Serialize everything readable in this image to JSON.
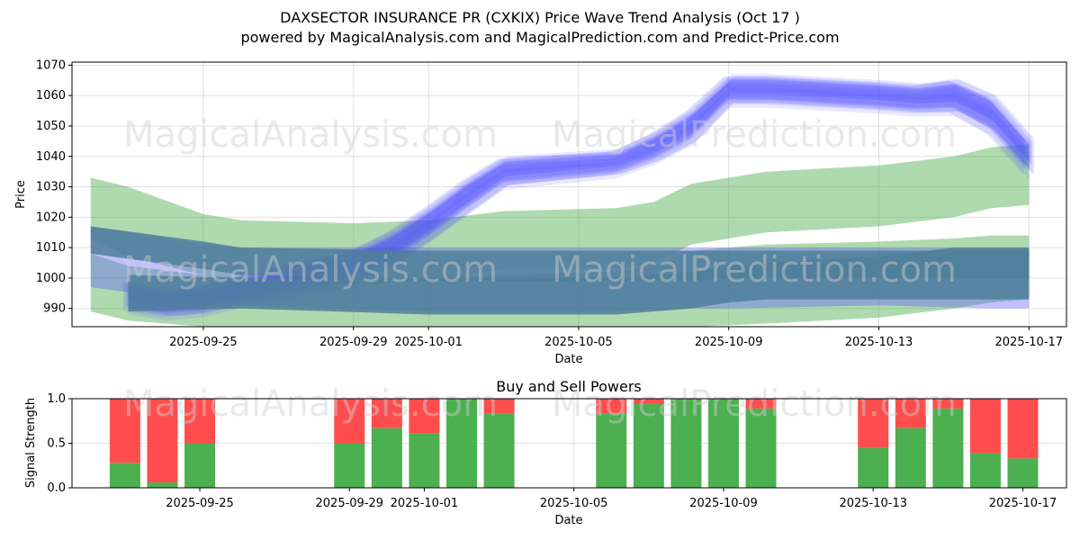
{
  "title_line1": "DAXSECTOR INSURANCE PR (CXKIX) Price Wave Trend Analysis (Oct 17 )",
  "title_line2": "powered by MagicalAnalysis.com and MagicalPrediction.com and Predict-Price.com",
  "watermarks": [
    "MagicalAnalysis.com",
    "MagicalPrediction.com"
  ],
  "colors": {
    "blue_band": "#4d4dff",
    "green_band": "#2e9e2e",
    "steel_band": "#4f7f9a",
    "buy": "#4caf50",
    "sell": "#ff4d4d",
    "grid": "#e0e0e0"
  },
  "chart_data": [
    {
      "type": "area",
      "title": "",
      "xlabel": "Date",
      "ylabel": "Price",
      "xlim": [
        "2025-09-21T12:00",
        "2025-10-18T00:00"
      ],
      "ylim": [
        984,
        1071
      ],
      "yticks": [
        990,
        1000,
        1010,
        1020,
        1030,
        1040,
        1050,
        1060,
        1070
      ],
      "xticks": [
        "2025-09-25",
        "2025-09-29",
        "2025-10-01",
        "2025-10-05",
        "2025-10-09",
        "2025-10-13",
        "2025-10-17"
      ],
      "grid": true,
      "price_wave": {
        "x": [
          "2025-09-23",
          "2025-09-24",
          "2025-09-25",
          "2025-09-26",
          "2025-09-29",
          "2025-09-30",
          "2025-10-01",
          "2025-10-02",
          "2025-10-03",
          "2025-10-06",
          "2025-10-07",
          "2025-10-08",
          "2025-10-09",
          "2025-10-10",
          "2025-10-13",
          "2025-10-14",
          "2025-10-15",
          "2025-10-16",
          "2025-10-17"
        ],
        "center": [
          994,
          992,
          993,
          996,
          1004,
          1010,
          1018,
          1027,
          1035,
          1038,
          1043,
          1050,
          1062,
          1062,
          1060,
          1059,
          1060,
          1054,
          1040
        ],
        "spread": [
          6,
          6,
          6,
          6,
          7,
          7,
          7,
          7,
          6,
          5,
          6,
          7,
          6,
          6,
          6,
          6,
          7,
          8,
          8
        ]
      },
      "bands": [
        {
          "name": "upper-green",
          "x": [
            "2025-09-22",
            "2025-09-23",
            "2025-09-25",
            "2025-09-26",
            "2025-09-29",
            "2025-10-01",
            "2025-10-03",
            "2025-10-06",
            "2025-10-07",
            "2025-10-08",
            "2025-10-10",
            "2025-10-13",
            "2025-10-15",
            "2025-10-16",
            "2025-10-17"
          ],
          "top": [
            1033,
            1030,
            1021,
            1019,
            1018,
            1019,
            1022,
            1023,
            1025,
            1031,
            1035,
            1037,
            1040,
            1043,
            1044
          ],
          "bottom": [
            1013,
            1007,
            1001,
            999,
            998,
            999,
            1003,
            1003,
            1005,
            1011,
            1015,
            1017,
            1020,
            1023,
            1024
          ]
        },
        {
          "name": "lower-green",
          "x": [
            "2025-09-22",
            "2025-09-23",
            "2025-09-25",
            "2025-09-26",
            "2025-09-29",
            "2025-10-01",
            "2025-10-03",
            "2025-10-06",
            "2025-10-07",
            "2025-10-08",
            "2025-10-10",
            "2025-10-13",
            "2025-10-15",
            "2025-10-16",
            "2025-10-17"
          ],
          "top": [
            1008,
            1004,
            1001,
            1000,
            999,
            1000,
            1001,
            1002,
            1004,
            1009,
            1011,
            1012,
            1013,
            1014,
            1014
          ],
          "bottom": [
            989,
            986,
            984,
            984,
            984,
            984,
            984,
            984,
            984,
            984,
            985,
            987,
            990,
            992,
            993
          ]
        },
        {
          "name": "upper-blue",
          "x": [
            "2025-09-22",
            "2025-09-25",
            "2025-09-26",
            "2025-10-01",
            "2025-10-06",
            "2025-10-08",
            "2025-10-09",
            "2025-10-13",
            "2025-10-16",
            "2025-10-17"
          ],
          "top": [
            1017,
            1011,
            1010,
            1010,
            1010,
            1010,
            1010,
            1010,
            1010,
            1010
          ],
          "bottom": [
            997,
            992,
            991,
            989,
            989,
            990,
            990,
            991,
            990,
            990
          ]
        },
        {
          "name": "steel-1",
          "x": [
            "2025-09-22",
            "2025-09-25",
            "2025-09-26",
            "2025-10-01",
            "2025-10-06",
            "2025-10-08",
            "2025-10-09",
            "2025-10-13",
            "2025-10-16",
            "2025-10-17"
          ],
          "top": [
            1017,
            1012,
            1010,
            1009,
            1009,
            1009,
            1009,
            1009,
            1009,
            1009
          ],
          "bottom": [
            1008,
            1003,
            1001,
            999,
            999,
            999,
            1000,
            1000,
            1000,
            1000
          ]
        },
        {
          "name": "steel-2",
          "x": [
            "2025-09-23",
            "2025-09-26",
            "2025-10-01",
            "2025-10-06",
            "2025-10-08",
            "2025-10-09",
            "2025-10-10",
            "2025-10-13",
            "2025-10-15",
            "2025-10-17"
          ],
          "top": [
            1001,
            1000,
            1000,
            1000,
            1002,
            1004,
            1005,
            1007,
            1010,
            1010
          ],
          "bottom": [
            989,
            990,
            988,
            988,
            990,
            992,
            993,
            993,
            993,
            993
          ]
        }
      ]
    },
    {
      "type": "bar",
      "title": "Buy and Sell Powers",
      "xlabel": "Date",
      "ylabel": "Signal Strength",
      "ylim": [
        0,
        1
      ],
      "yticks": [
        "0.0",
        "0.5",
        "1.0"
      ],
      "xticks": [
        "2025-09-25",
        "2025-09-29",
        "2025-10-01",
        "2025-10-05",
        "2025-10-09",
        "2025-10-13",
        "2025-10-17"
      ],
      "grid": true,
      "x": [
        "2025-09-23",
        "2025-09-24",
        "2025-09-25",
        "2025-09-29",
        "2025-09-30",
        "2025-10-01",
        "2025-10-02",
        "2025-10-03",
        "2025-10-06",
        "2025-10-07",
        "2025-10-08",
        "2025-10-09",
        "2025-10-10",
        "2025-10-13",
        "2025-10-14",
        "2025-10-15",
        "2025-10-16",
        "2025-10-17"
      ],
      "series": [
        {
          "name": "Buy",
          "values": [
            0.28,
            0.06,
            0.5,
            0.5,
            0.67,
            0.61,
            1.0,
            0.83,
            0.83,
            0.94,
            1.0,
            1.0,
            0.89,
            0.45,
            0.67,
            0.89,
            0.39,
            0.33
          ]
        },
        {
          "name": "Sell",
          "values": [
            0.72,
            0.94,
            0.5,
            0.5,
            0.33,
            0.39,
            0.0,
            0.17,
            0.17,
            0.06,
            0.0,
            0.0,
            0.11,
            0.55,
            0.33,
            0.11,
            0.61,
            0.67
          ]
        }
      ]
    }
  ]
}
